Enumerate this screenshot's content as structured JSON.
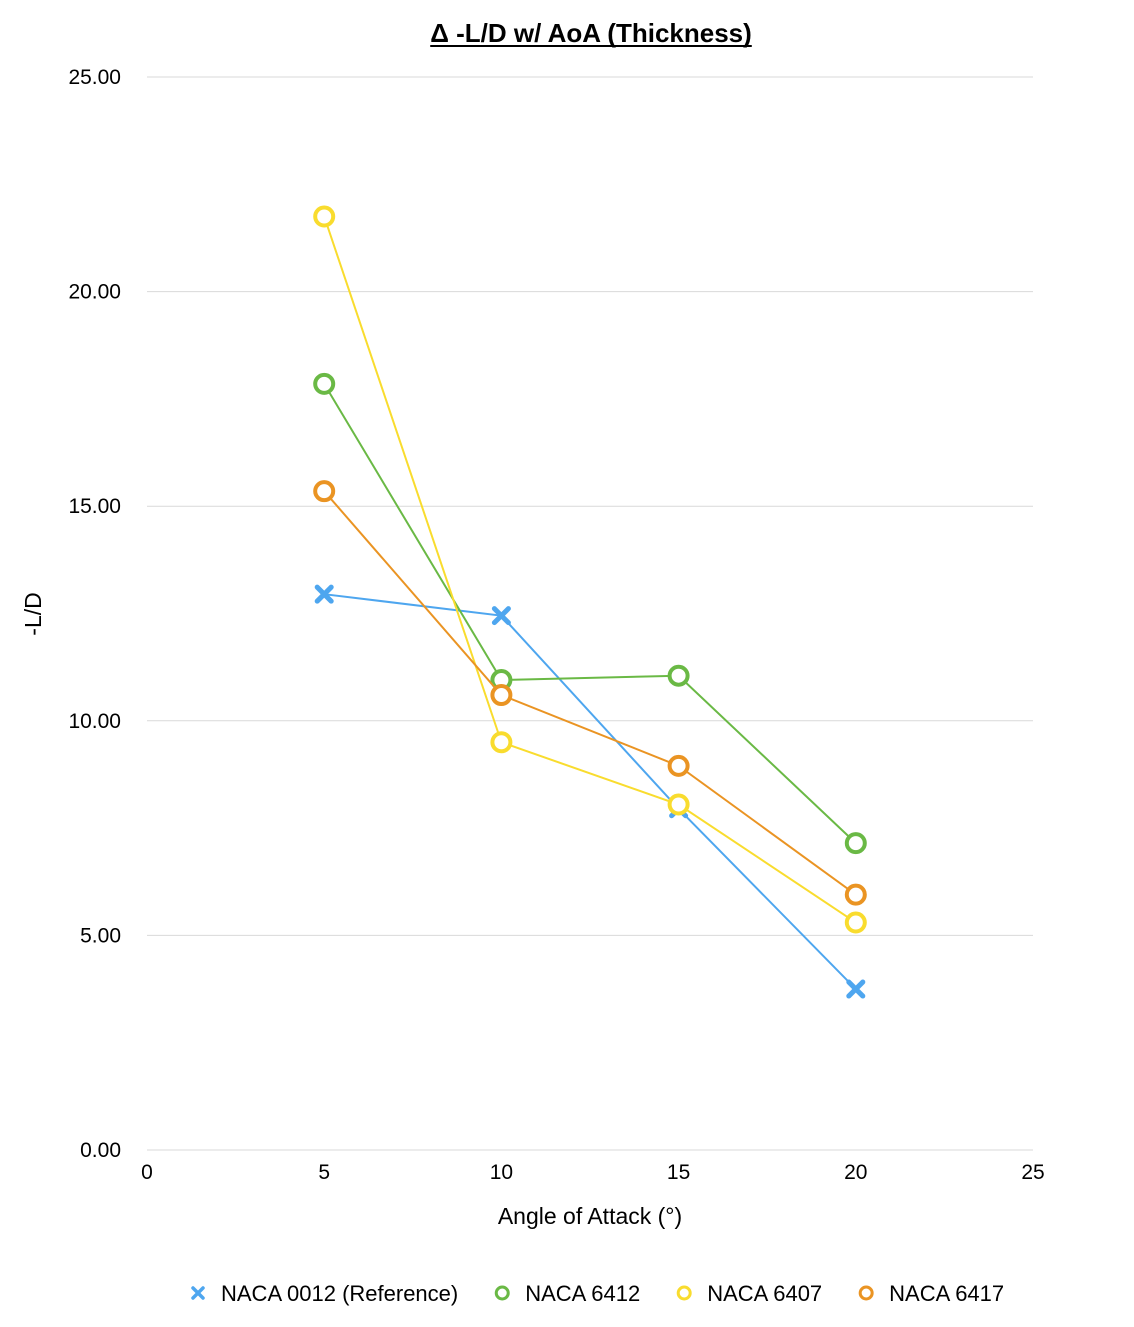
{
  "chart_data": {
    "type": "line",
    "title": "Δ -L/D w/ AoA (Thickness)",
    "xlabel": "Angle of Attack (°)",
    "ylabel": "-L/D",
    "xlim": [
      0,
      25
    ],
    "ylim": [
      0,
      25
    ],
    "x_ticks": [
      "0",
      "5",
      "10",
      "15",
      "20",
      "25"
    ],
    "y_ticks": [
      "0.00",
      "5.00",
      "10.00",
      "15.00",
      "20.00",
      "25.00"
    ],
    "grid": true,
    "legend_position": "bottom",
    "x": [
      5,
      10,
      15,
      20
    ],
    "series": [
      {
        "name": "NACA 0012 (Reference)",
        "marker": "x",
        "color": "#4ea6ef",
        "values": [
          12.95,
          12.45,
          7.95,
          3.75
        ]
      },
      {
        "name": "NACA 6412",
        "marker": "circle",
        "color": "#6ab945",
        "values": [
          17.85,
          10.95,
          11.05,
          7.15
        ]
      },
      {
        "name": "NACA 6407",
        "marker": "circle",
        "color": "#f9dc2e",
        "values": [
          21.75,
          9.5,
          8.05,
          5.3
        ]
      },
      {
        "name": "NACA 6417",
        "marker": "circle",
        "color": "#ea9423",
        "values": [
          15.35,
          10.6,
          8.95,
          5.95
        ]
      }
    ]
  }
}
